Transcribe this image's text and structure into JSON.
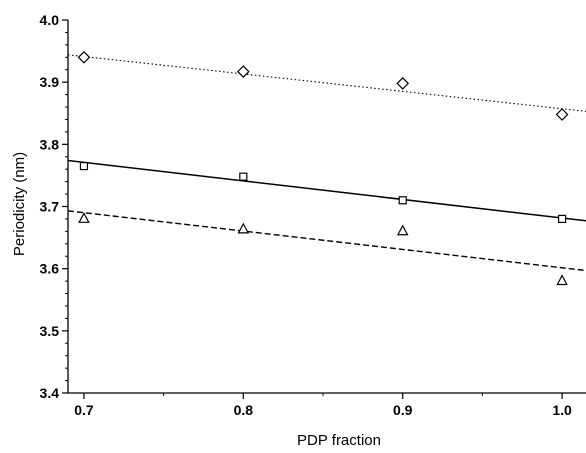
{
  "chart_data": {
    "type": "scatter",
    "xlabel": "PDP fraction",
    "ylabel": "Periodicity (nm)",
    "xlim": [
      0.69,
      1.015
    ],
    "ylim": [
      3.4,
      4.0
    ],
    "x_ticks": [
      0.7,
      0.8,
      0.9,
      1.0
    ],
    "x_tick_labels": [
      "0.7",
      "0.8",
      "0.9",
      "1.0"
    ],
    "y_ticks": [
      3.4,
      3.5,
      3.6,
      3.7,
      3.8,
      3.9,
      4.0
    ],
    "y_tick_labels": [
      "3.4",
      "3.5",
      "3.6",
      "3.7",
      "3.8",
      "3.9",
      "4.0"
    ],
    "grid": false,
    "legend": "none",
    "series": [
      {
        "marker": "diamond",
        "line_style": "dotted",
        "x": [
          0.7,
          0.8,
          0.9,
          1.0
        ],
        "y": [
          3.94,
          3.917,
          3.898,
          3.848
        ],
        "fit": {
          "x": [
            0.69,
            1.015
          ],
          "y": [
            3.944,
            3.853
          ]
        }
      },
      {
        "marker": "square",
        "line_style": "solid",
        "x": [
          0.7,
          0.8,
          0.9,
          1.0
        ],
        "y": [
          3.765,
          3.748,
          3.71,
          3.68
        ],
        "fit": {
          "x": [
            0.69,
            1.015
          ],
          "y": [
            3.774,
            3.677
          ]
        }
      },
      {
        "marker": "triangle",
        "line_style": "dashed",
        "x": [
          0.7,
          0.8,
          0.9,
          1.0
        ],
        "y": [
          3.681,
          3.664,
          3.661,
          3.581
        ],
        "fit": {
          "x": [
            0.69,
            1.015
          ],
          "y": [
            3.693,
            3.597
          ]
        }
      }
    ]
  }
}
